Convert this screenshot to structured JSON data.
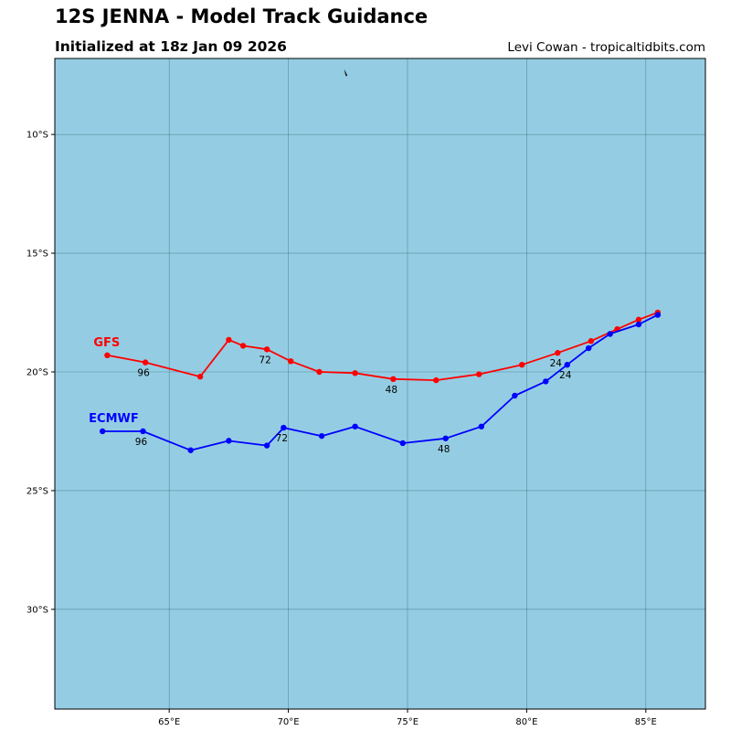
{
  "header": {
    "title": "12S JENNA - Model Track Guidance",
    "subtitle": "Initialized at 18z Jan 09 2026",
    "credit": "Levi Cowan - tropicaltidbits.com"
  },
  "map": {
    "ocean_color": "#94cde3",
    "grid_color": "#3d6d7d",
    "lon_range": [
      60.2,
      87.5
    ],
    "lat_range": [
      -34.2,
      -6.8
    ],
    "x_ticks": [
      {
        "value": 65,
        "label": "65°E"
      },
      {
        "value": 70,
        "label": "70°E"
      },
      {
        "value": 75,
        "label": "75°E"
      },
      {
        "value": 80,
        "label": "80°E"
      },
      {
        "value": 85,
        "label": "85°E"
      }
    ],
    "y_ticks": [
      {
        "value": -10,
        "label": "10°S"
      },
      {
        "value": -15,
        "label": "15°S"
      },
      {
        "value": -20,
        "label": "20°S"
      },
      {
        "value": -25,
        "label": "25°S"
      },
      {
        "value": -30,
        "label": "30°S"
      }
    ],
    "land_marks": [
      {
        "name": "island",
        "lon": 72.4,
        "lat": -7.4
      }
    ]
  },
  "chart_data": {
    "type": "line",
    "series": [
      {
        "name": "GFS",
        "color": "#ff0000",
        "points": [
          [
            85.5,
            -17.5
          ],
          [
            84.7,
            -17.8
          ],
          [
            83.8,
            -18.2
          ],
          [
            82.7,
            -18.7
          ],
          [
            81.3,
            -19.2
          ],
          [
            79.8,
            -19.7
          ],
          [
            78.0,
            -20.1
          ],
          [
            76.2,
            -20.35
          ],
          [
            74.4,
            -20.3
          ],
          [
            72.8,
            -20.05
          ],
          [
            71.3,
            -20.0
          ],
          [
            70.1,
            -19.55
          ],
          [
            69.1,
            -19.05
          ],
          [
            68.1,
            -18.9
          ],
          [
            67.5,
            -18.65
          ],
          [
            66.3,
            -20.2
          ],
          [
            64.0,
            -19.6
          ],
          [
            62.4,
            -19.3
          ]
        ],
        "hour_labels": [
          {
            "text": "24",
            "lon": 81.3,
            "lat": -19.2
          },
          {
            "text": "48",
            "lon": 74.4,
            "lat": -20.3
          },
          {
            "text": "72",
            "lon": 69.1,
            "lat": -19.05
          },
          {
            "text": "96",
            "lon": 64.0,
            "lat": -19.6
          }
        ]
      },
      {
        "name": "ECMWF",
        "color": "#0000ff",
        "points": [
          [
            85.5,
            -17.6
          ],
          [
            84.7,
            -18.0
          ],
          [
            83.5,
            -18.4
          ],
          [
            82.6,
            -19.0
          ],
          [
            81.7,
            -19.7
          ],
          [
            80.8,
            -20.4
          ],
          [
            79.5,
            -21.0
          ],
          [
            78.1,
            -22.3
          ],
          [
            76.6,
            -22.8
          ],
          [
            74.8,
            -23.0
          ],
          [
            72.8,
            -22.3
          ],
          [
            71.4,
            -22.7
          ],
          [
            69.8,
            -22.35
          ],
          [
            69.1,
            -23.1
          ],
          [
            67.5,
            -22.9
          ],
          [
            65.9,
            -23.3
          ],
          [
            63.9,
            -22.5
          ],
          [
            62.2,
            -22.5
          ]
        ],
        "hour_labels": [
          {
            "text": "24",
            "lon": 81.7,
            "lat": -19.7
          },
          {
            "text": "48",
            "lon": 76.6,
            "lat": -22.8
          },
          {
            "text": "72",
            "lon": 69.8,
            "lat": -22.35
          },
          {
            "text": "96",
            "lon": 63.9,
            "lat": -22.5
          }
        ]
      }
    ]
  }
}
